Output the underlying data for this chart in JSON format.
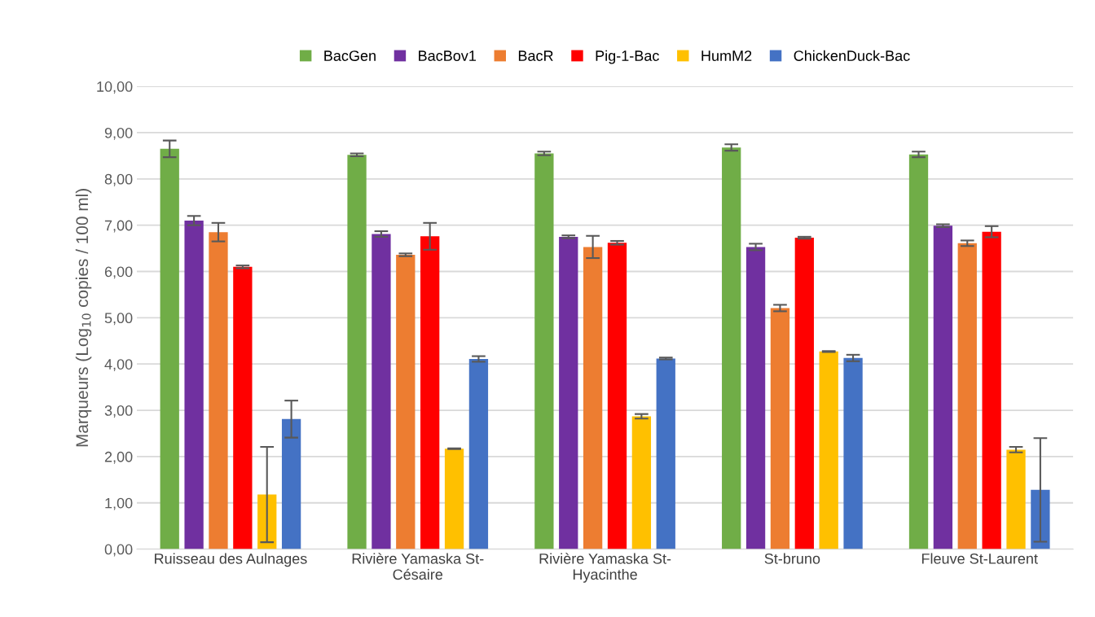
{
  "chart_data": {
    "type": "bar",
    "ylabel": "Marqueurs (Log$_{10}$ copies / 100 ml)",
    "categories": [
      "Ruisseau des Aulnages",
      "Rivière Yamaska St-\nCésaire",
      "Rivière Yamaska St-\nHyacinthe",
      "St-bruno",
      "Fleuve St-Laurent"
    ],
    "series": [
      {
        "name": "BacGen",
        "color": "#70ad47",
        "values": [
          8.65,
          8.52,
          8.55,
          8.68,
          8.53
        ],
        "errors": [
          0.18,
          0.03,
          0.04,
          0.07,
          0.06
        ]
      },
      {
        "name": "BacBov1",
        "color": "#7030a0",
        "values": [
          7.1,
          6.81,
          6.75,
          6.53,
          6.99
        ],
        "errors": [
          0.1,
          0.06,
          0.03,
          0.07,
          0.03
        ]
      },
      {
        "name": "BacR",
        "color": "#ed7d31",
        "values": [
          6.85,
          6.36,
          6.53,
          5.21,
          6.61
        ],
        "errors": [
          0.2,
          0.03,
          0.24,
          0.07,
          0.06
        ]
      },
      {
        "name": "Pig-1-Bac",
        "color": "#ff0000",
        "values": [
          6.1,
          6.76,
          6.62,
          6.73,
          6.86
        ],
        "errors": [
          0.03,
          0.29,
          0.04,
          0.02,
          0.12
        ]
      },
      {
        "name": "HumM2",
        "color": "#ffc000",
        "values": [
          1.18,
          2.17,
          2.87,
          4.27,
          2.15
        ],
        "errors": [
          1.03,
          0.01,
          0.05,
          0.01,
          0.06
        ]
      },
      {
        "name": "ChickenDuck-Bac",
        "color": "#4472c4",
        "values": [
          2.81,
          4.11,
          4.12,
          4.13,
          1.28
        ],
        "errors": [
          0.4,
          0.06,
          0.02,
          0.07,
          1.12
        ]
      }
    ],
    "ylim": [
      0,
      10
    ],
    "yticks": [
      {
        "value": 0,
        "label": "0,00"
      },
      {
        "value": 1,
        "label": "1,00"
      },
      {
        "value": 2,
        "label": "2,00"
      },
      {
        "value": 3,
        "label": "3,00"
      },
      {
        "value": 4,
        "label": "4,00"
      },
      {
        "value": 5,
        "label": "5,00"
      },
      {
        "value": 6,
        "label": "6,00"
      },
      {
        "value": 7,
        "label": "7,00"
      },
      {
        "value": 8,
        "label": "8,00"
      },
      {
        "value": 9,
        "label": "9,00"
      },
      {
        "value": 10,
        "label": "10,00"
      }
    ],
    "grid": "y",
    "legend": "top"
  }
}
